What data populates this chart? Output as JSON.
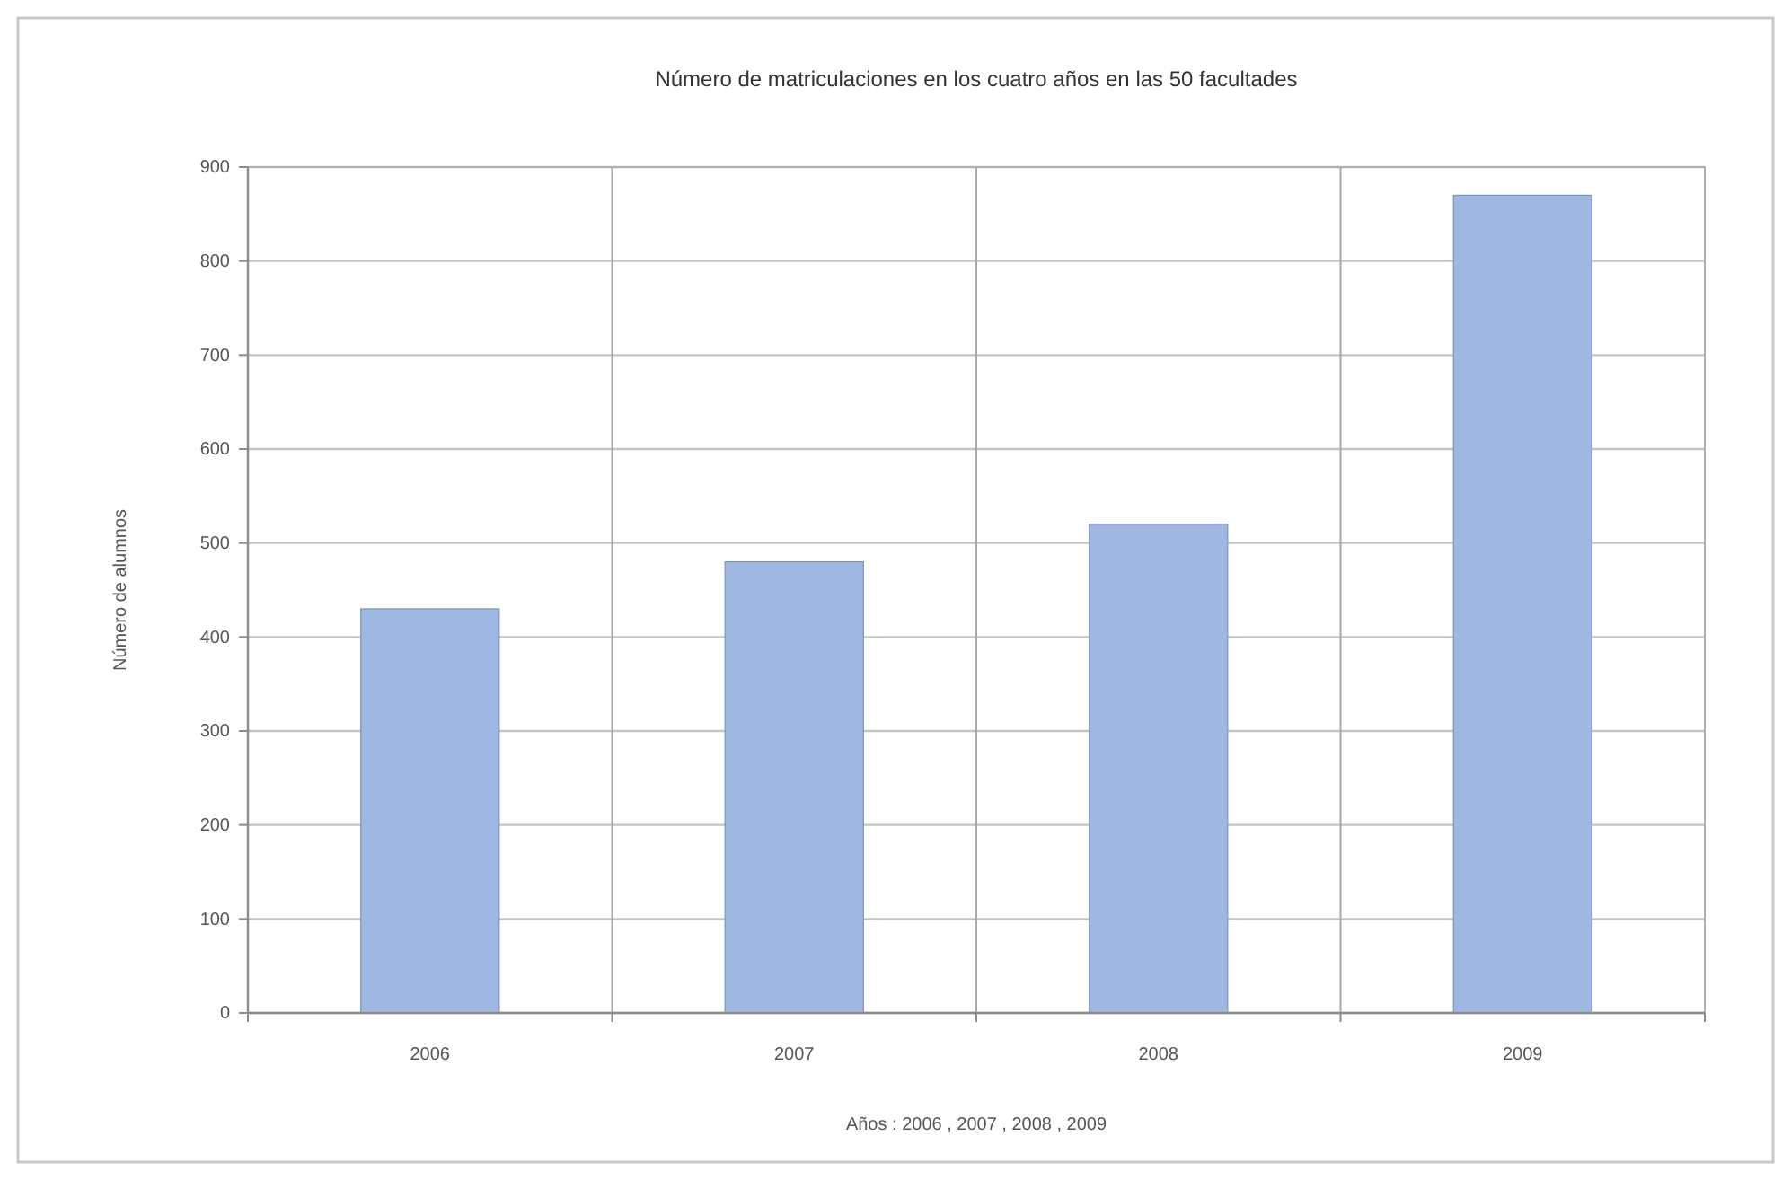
{
  "chart_data": {
    "type": "bar",
    "title": "Número de matriculaciones en los cuatro años en las 50 facultades",
    "xlabel": "Años : 2006 , 2007 , 2008 , 2009",
    "ylabel": "Número de alumnos",
    "categories": [
      "2006",
      "2007",
      "2008",
      "2009"
    ],
    "values": [
      430,
      480,
      520,
      870
    ],
    "color": "#9fb8e2",
    "ylim": [
      0,
      900
    ],
    "yticks": [
      0,
      100,
      200,
      300,
      400,
      500,
      600,
      700,
      800,
      900
    ],
    "grid": true
  }
}
